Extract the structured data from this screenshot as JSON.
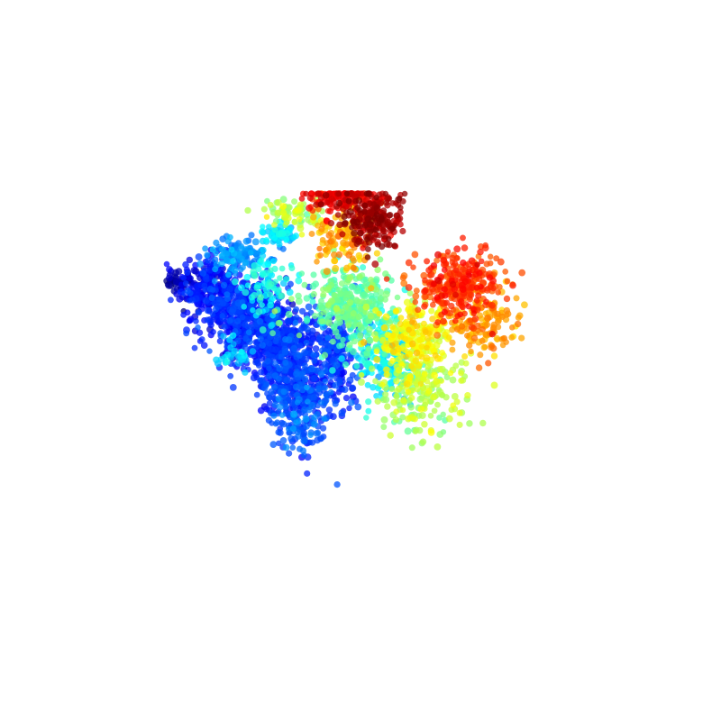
{
  "chart_data": {
    "type": "scatter",
    "title": "",
    "xlabel": "",
    "ylabel": "",
    "grid": false,
    "axes_visible": false,
    "legend": "none",
    "colormap": "jet",
    "color_stops": [
      "#00007f",
      "#0000ff",
      "#007fff",
      "#00ffff",
      "#7fff7f",
      "#ffff00",
      "#ff7f00",
      "#ff0000",
      "#7f0000"
    ],
    "marker": "circle",
    "marker_alpha": 0.75,
    "xlim": [
      0,
      1
    ],
    "ylim": [
      0,
      1
    ],
    "clim": [
      0,
      1
    ],
    "clusters": [
      {
        "x": 0.035,
        "y": 0.72,
        "spread_x": 0.02,
        "spread_y": 0.018,
        "n": 40,
        "c": 0.02
      },
      {
        "x": 0.11,
        "y": 0.7,
        "spread_x": 0.04,
        "spread_y": 0.05,
        "n": 220,
        "c": 0.12
      },
      {
        "x": 0.2,
        "y": 0.62,
        "spread_x": 0.06,
        "spread_y": 0.06,
        "n": 420,
        "c": 0.15
      },
      {
        "x": 0.3,
        "y": 0.52,
        "spread_x": 0.06,
        "spread_y": 0.06,
        "n": 420,
        "c": 0.16
      },
      {
        "x": 0.34,
        "y": 0.38,
        "spread_x": 0.05,
        "spread_y": 0.045,
        "n": 250,
        "c": 0.17
      },
      {
        "x": 0.45,
        "y": 0.47,
        "spread_x": 0.04,
        "spread_y": 0.08,
        "n": 200,
        "c": 0.17
      },
      {
        "x": 0.36,
        "y": 0.25,
        "spread_x": 0.04,
        "spread_y": 0.06,
        "n": 120,
        "c": 0.2
      },
      {
        "x": 0.2,
        "y": 0.8,
        "spread_x": 0.05,
        "spread_y": 0.03,
        "n": 110,
        "c": 0.26
      },
      {
        "x": 0.17,
        "y": 0.48,
        "spread_x": 0.025,
        "spread_y": 0.025,
        "n": 30,
        "c": 0.33
      },
      {
        "x": 0.31,
        "y": 0.87,
        "spread_x": 0.025,
        "spread_y": 0.018,
        "n": 60,
        "c": 0.34
      },
      {
        "x": 0.58,
        "y": 0.46,
        "spread_x": 0.04,
        "spread_y": 0.06,
        "n": 150,
        "c": 0.36
      },
      {
        "x": 0.27,
        "y": 0.71,
        "spread_x": 0.035,
        "spread_y": 0.05,
        "n": 80,
        "c": 0.38
      },
      {
        "x": 0.5,
        "y": 0.64,
        "spread_x": 0.06,
        "spread_y": 0.06,
        "n": 350,
        "c": 0.46
      },
      {
        "x": 0.68,
        "y": 0.36,
        "spread_x": 0.06,
        "spread_y": 0.07,
        "n": 200,
        "c": 0.55
      },
      {
        "x": 0.34,
        "y": 0.94,
        "spread_x": 0.04,
        "spread_y": 0.025,
        "n": 70,
        "c": 0.55
      },
      {
        "x": 0.66,
        "y": 0.54,
        "spread_x": 0.05,
        "spread_y": 0.06,
        "n": 220,
        "c": 0.62
      },
      {
        "x": 0.47,
        "y": 0.86,
        "spread_x": 0.04,
        "spread_y": 0.06,
        "n": 120,
        "c": 0.7
      },
      {
        "x": 0.84,
        "y": 0.58,
        "spread_x": 0.05,
        "spread_y": 0.05,
        "n": 160,
        "c": 0.72
      },
      {
        "x": 0.78,
        "y": 0.71,
        "spread_x": 0.06,
        "spread_y": 0.05,
        "n": 300,
        "c": 0.82
      },
      {
        "x": 0.46,
        "y": 0.99,
        "spread_x": 0.045,
        "spread_y": 0.025,
        "n": 120,
        "c": 0.88
      },
      {
        "x": 0.55,
        "y": 0.92,
        "spread_x": 0.04,
        "spread_y": 0.05,
        "n": 220,
        "c": 0.96
      }
    ]
  }
}
